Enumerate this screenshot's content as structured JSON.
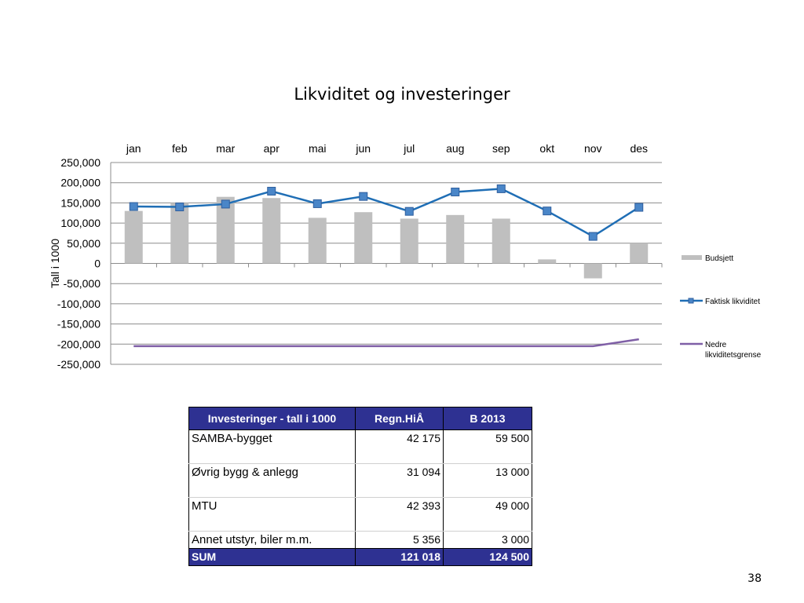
{
  "slide": {
    "title": "Likviditet og investeringer",
    "page_number": "38"
  },
  "chart_data": {
    "type": "bar",
    "title": "",
    "xlabel": "",
    "ylabel": "Tall i 1000",
    "categories": [
      "jan",
      "feb",
      "mar",
      "apr",
      "mai",
      "jun",
      "jul",
      "aug",
      "sep",
      "okt",
      "nov",
      "des"
    ],
    "ylim": [
      -250000,
      250000
    ],
    "yticks": [
      250000,
      200000,
      150000,
      100000,
      50000,
      0,
      -50000,
      -100000,
      -150000,
      -200000,
      -250000
    ],
    "ytick_labels": [
      "250,000",
      "200,000",
      "150,000",
      "100,000",
      "50,000",
      "0",
      "-50,000",
      "-100,000",
      "-150,000",
      "-200,000",
      "-250,000"
    ],
    "grid": true,
    "category_axis_position": "top",
    "legend_position": "right",
    "series": [
      {
        "name": "Budsjett",
        "type": "bar",
        "color": "#bfbfbf",
        "values": [
          130000,
          150000,
          165000,
          162000,
          113000,
          127000,
          111000,
          120000,
          111000,
          10000,
          -37000,
          50000
        ]
      },
      {
        "name": "Faktisk likviditet",
        "type": "line",
        "marker": "square",
        "color": "#1f6eb5",
        "marker_color": "#4a86c8",
        "values": [
          141000,
          140000,
          147000,
          179000,
          148000,
          166000,
          129000,
          177000,
          185000,
          130000,
          67000,
          139000
        ]
      },
      {
        "name": "Nedre likviditetsgrense",
        "type": "line",
        "color": "#7f5fa6",
        "values": [
          -205000,
          -205000,
          -205000,
          -205000,
          -205000,
          -205000,
          -205000,
          -205000,
          -205000,
          -205000,
          -205000,
          -188000
        ]
      }
    ]
  },
  "table": {
    "headers": [
      "Investeringer - tall i 1000",
      "Regn.HiÅ",
      "B 2013"
    ],
    "rows": [
      {
        "label": "SAMBA-bygget",
        "regn": "42 175",
        "b2013": "59 500"
      },
      {
        "label": "Øvrig bygg & anlegg",
        "regn": "31 094",
        "b2013": "13 000"
      },
      {
        "label": "MTU",
        "regn": "42 393",
        "b2013": "49 000"
      },
      {
        "label": "Annet utstyr, biler m.m.",
        "regn": "5 356",
        "b2013": "3 000"
      }
    ],
    "total": {
      "label": "SUM",
      "regn": "121 018",
      "b2013": "124 500"
    }
  }
}
